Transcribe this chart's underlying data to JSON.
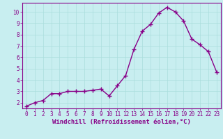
{
  "x": [
    0,
    1,
    2,
    3,
    4,
    5,
    6,
    7,
    8,
    9,
    10,
    11,
    12,
    13,
    14,
    15,
    16,
    17,
    18,
    19,
    20,
    21,
    22,
    23
  ],
  "y": [
    1.7,
    2.0,
    2.2,
    2.8,
    2.8,
    3.0,
    3.0,
    3.0,
    3.1,
    3.2,
    2.6,
    3.5,
    4.4,
    6.7,
    8.3,
    8.9,
    9.9,
    10.4,
    10.0,
    9.2,
    7.6,
    7.1,
    6.5,
    4.7
  ],
  "line_color": "#880088",
  "marker": "+",
  "bg_color": "#c8eef0",
  "grid_color": "#aadddd",
  "xlabel": "Windchill (Refroidissement éolien,°C)",
  "ylabel_ticks": [
    2,
    3,
    4,
    5,
    6,
    7,
    8,
    9,
    10
  ],
  "xlim": [
    -0.5,
    23.5
  ],
  "ylim": [
    1.5,
    10.8
  ],
  "xlabel_color": "#880088",
  "tick_color": "#880088",
  "spine_color": "#880088",
  "font_family": "monospace",
  "linewidth": 1.0,
  "markersize": 5,
  "tick_fontsize": 5.5,
  "xlabel_fontsize": 6.5
}
